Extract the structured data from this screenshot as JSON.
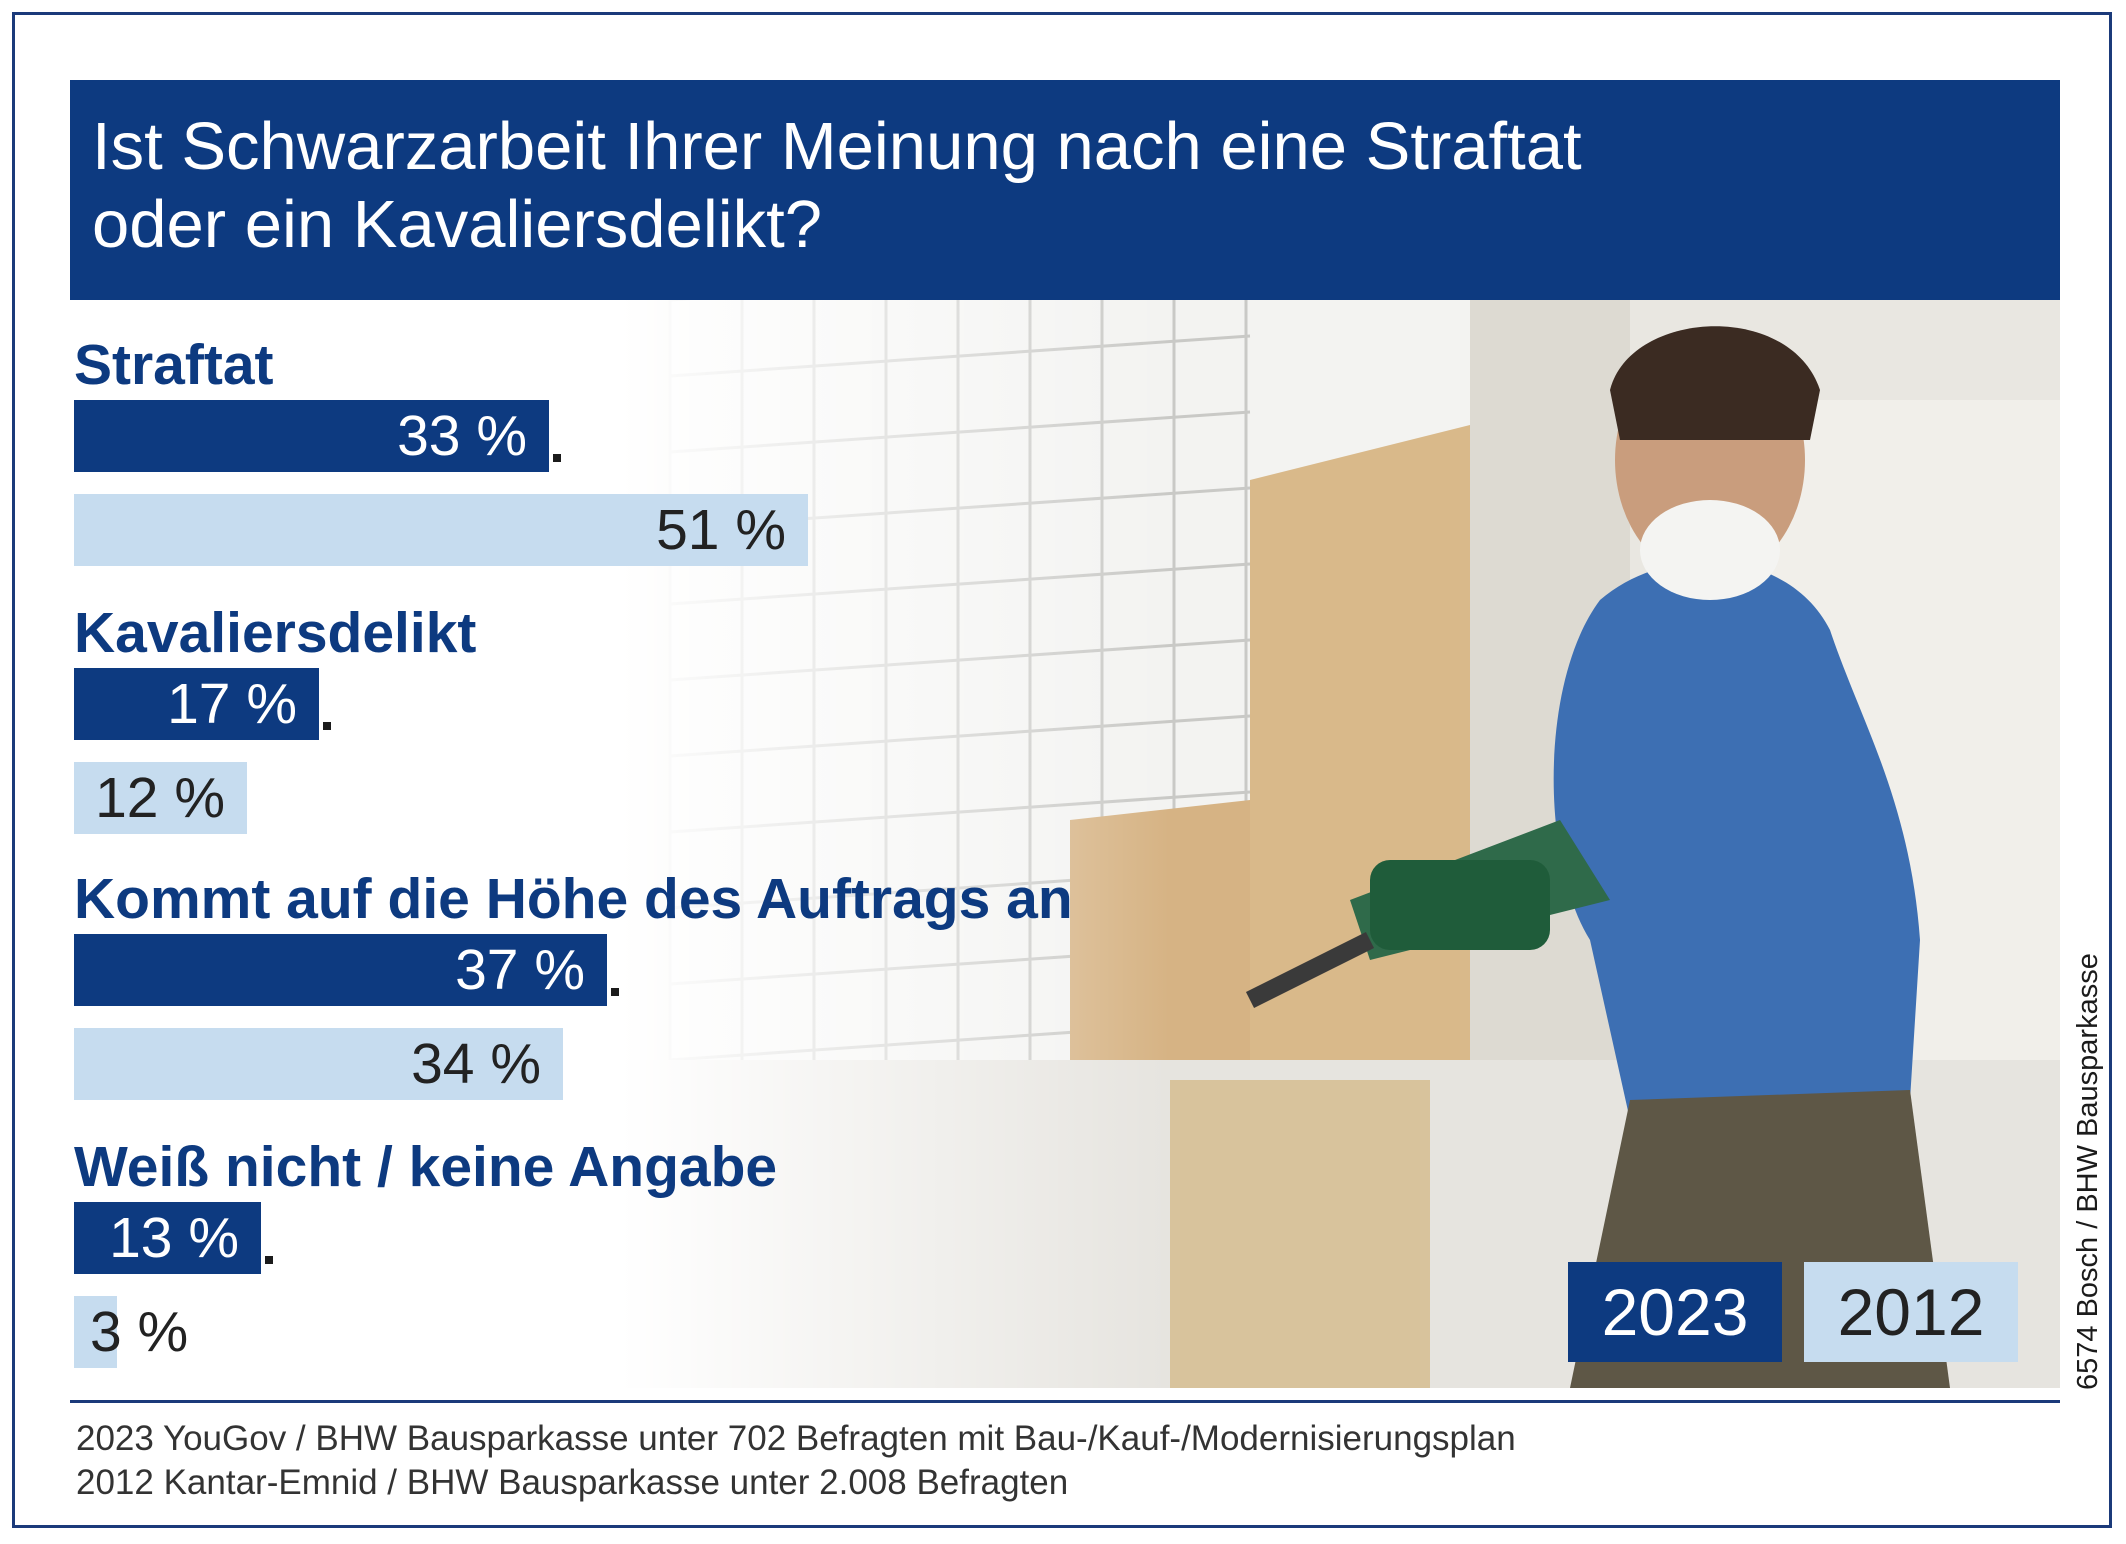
{
  "title": "Ist Schwarzarbeit Ihrer Meinung nach eine Straftat oder ein Kavaliersdelikt?",
  "title_lines": [
    "Ist Schwarzarbeit Ihrer Meinung nach eine Straftat",
    "oder ein Kavaliersdelikt?"
  ],
  "colors": {
    "dark_blue": "#0d3a80",
    "light_blue": "#c6dcef"
  },
  "legend": {
    "label_2023": "2023",
    "label_2012": "2012"
  },
  "credit": "6574 Bosch / BHW Bausparkasse",
  "notes": [
    "2023 YouGov / BHW Bausparkasse unter 702 Befragten mit Bau-/Kauf-/Modernisierungsplan",
    "2012 Kantar-Emnid / BHW Bausparkasse unter 2.008 Befragten"
  ],
  "chart_data": {
    "type": "bar",
    "orientation": "horizontal",
    "unit": "%",
    "categories": [
      "Straftat",
      "Kavaliersdelikt",
      "Kommt auf die Höhe des Auftrags an",
      "Weiß nicht / keine Angabe"
    ],
    "series": [
      {
        "name": "2023",
        "values": [
          33,
          17,
          37,
          13
        ],
        "labels": [
          "33 %",
          "17 %",
          "37 %",
          "13 %"
        ],
        "color": "#0d3a80"
      },
      {
        "name": "2012",
        "values": [
          51,
          12,
          34,
          3
        ],
        "labels": [
          "51 %",
          "12 %",
          "34 %",
          "3 %"
        ],
        "color": "#c6dcef"
      }
    ],
    "legend": "bottom-right"
  }
}
